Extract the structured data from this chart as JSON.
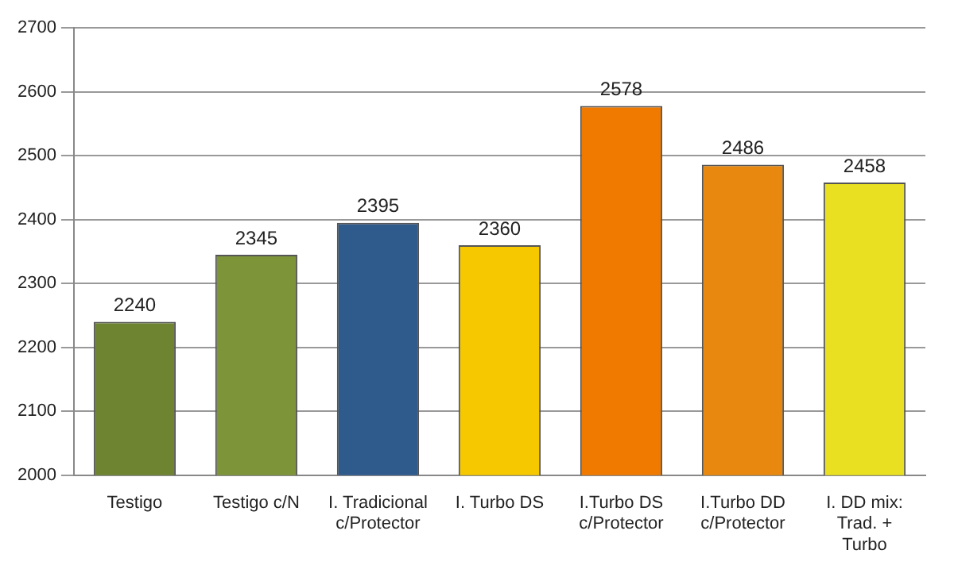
{
  "chart_data": {
    "type": "bar",
    "categories": [
      "Testigo",
      "Testigo c/N",
      "I. Tradicional c/Protector",
      "I. Turbo DS",
      "I.Turbo DS c/Protector",
      "I.Turbo DD c/Protector",
      "I. DD mix: Trad. + Turbo"
    ],
    "values": [
      2240,
      2345,
      2395,
      2360,
      2578,
      2486,
      2458
    ],
    "colors": [
      "#6e8430",
      "#7d9439",
      "#2e5a8c",
      "#f5c800",
      "#f07a00",
      "#e8880e",
      "#e8e020"
    ],
    "ylim": [
      2000,
      2700
    ],
    "yticks": [
      2000,
      2100,
      2200,
      2300,
      2400,
      2500,
      2600,
      2700
    ],
    "grid": "y",
    "legend": false,
    "data_labels": true
  }
}
